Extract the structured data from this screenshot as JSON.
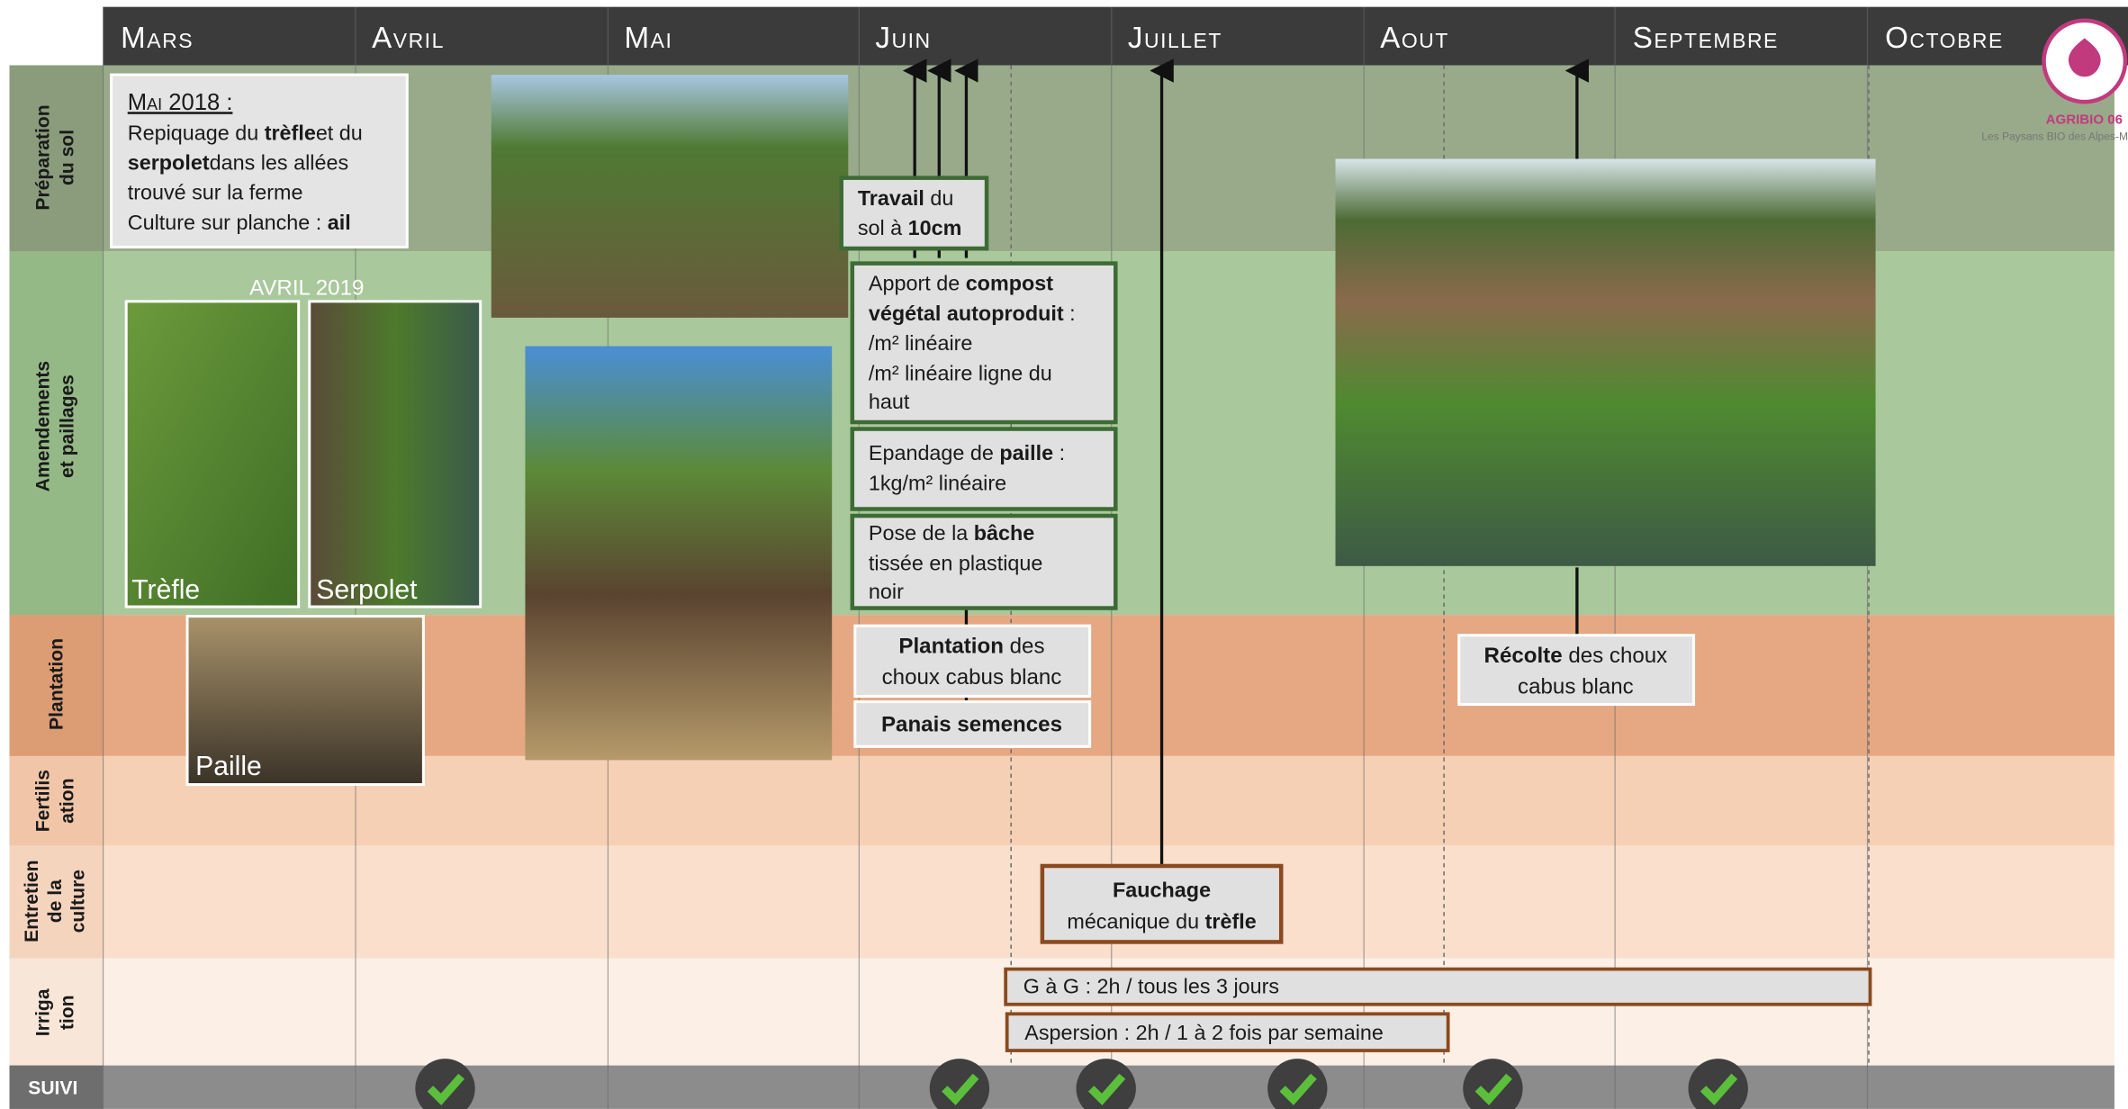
{
  "header": {
    "months": [
      "Mars",
      "Avril",
      "Mai",
      "Juin",
      "Juillet",
      "Aout",
      "Septembre",
      "Octobre"
    ]
  },
  "logo": {
    "name": "AGRIBIO 06",
    "tagline": "Les Paysans BIO des Alpes-M"
  },
  "rows": [
    [
      "Préparation",
      "du sol"
    ],
    [
      "Amendements",
      "et paillages"
    ],
    [
      "Plantation"
    ],
    [
      "Fertilis",
      "ation"
    ],
    [
      "Entretien",
      "de la",
      "culture"
    ],
    [
      "Irriga",
      "tion"
    ],
    [
      "SUIVI"
    ]
  ],
  "note": {
    "title": "Mai 2018 :",
    "lines": [
      [
        "Repiquage du ",
        "trèfle",
        "et du"
      ],
      [
        "serpolet",
        "dans les allées"
      ],
      [
        "trouvé sur la ferme"
      ],
      [
        "Culture sur planche : ",
        "ail"
      ]
    ]
  },
  "photos": {
    "date": "AVRIL 2019",
    "trefle": "Trèfle",
    "serpolet": "Serpolet",
    "paille": "Paille"
  },
  "boxes": {
    "travail": [
      [
        "Travail",
        " du"
      ],
      [
        "sol à ",
        "10cm"
      ]
    ],
    "compost": [
      [
        "Apport de ",
        "compost"
      ],
      [
        "végétal autoproduit",
        " :"
      ],
      [
        "/m² linéaire"
      ],
      [
        "/m² linéaire ligne du"
      ],
      [
        "haut"
      ]
    ],
    "paille": [
      [
        "Epandage de ",
        "paille",
        " :"
      ],
      [
        "1kg/m² linéaire"
      ]
    ],
    "bache": [
      [
        "Pose de la ",
        "bâche"
      ],
      [
        "tissée en plastique"
      ],
      [
        "noir"
      ]
    ],
    "plantation": [
      [
        "Plantation",
        " des"
      ],
      [
        "choux cabus blanc"
      ]
    ],
    "panais": [
      [
        "Panais semences"
      ]
    ],
    "recolte": [
      [
        "Récolte",
        " des choux"
      ],
      [
        "cabus blanc"
      ]
    ],
    "fauchage": [
      [
        "Fauchage"
      ],
      [
        "mécanique du ",
        "trèfle"
      ]
    ],
    "gag": [
      [
        "G à G : 2h / tous les 3 jours"
      ]
    ],
    "aspersion": [
      [
        "Aspersion : 2h / 1 à 2 fois par semaine"
      ]
    ]
  }
}
